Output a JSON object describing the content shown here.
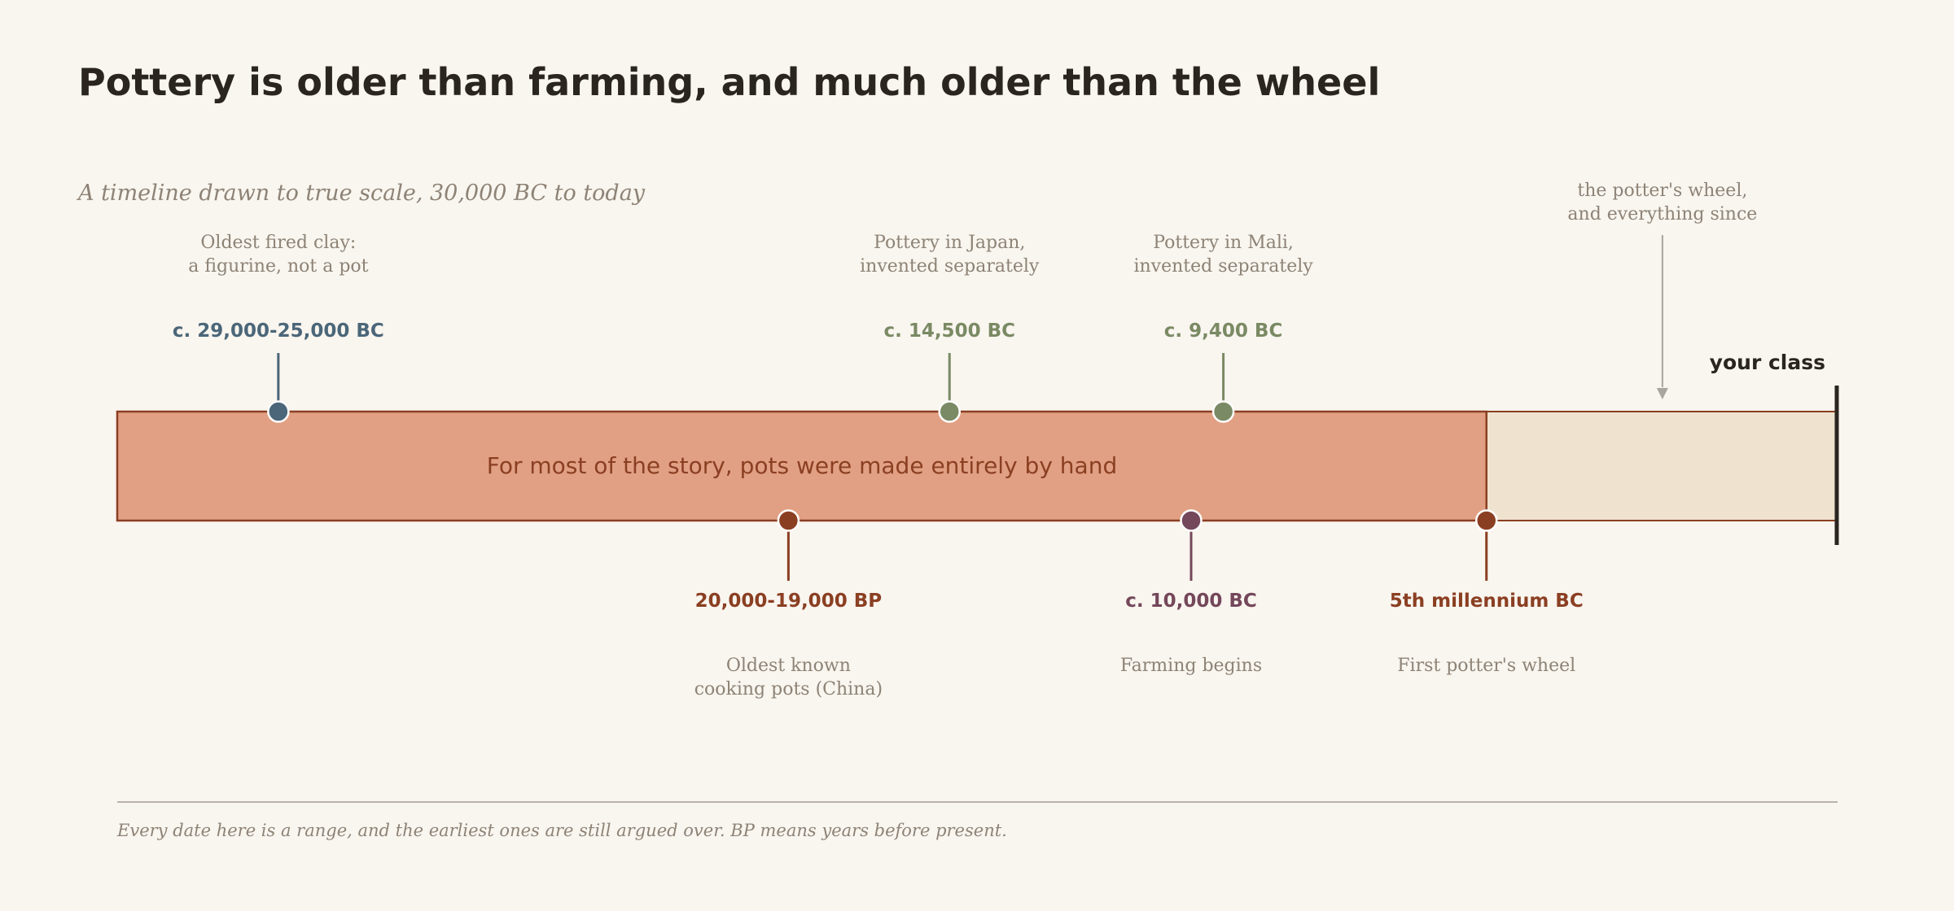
{
  "header": {
    "title": "Pottery is older than farming, and much older than the wheel",
    "subtitle": "A timeline drawn to true scale, 30,000 BC to today"
  },
  "timeline": {
    "range_start_year": -30000,
    "range_end_year": 2024,
    "hand_band_end_year": -4500,
    "band_label": "For most of the story, pots were made entirely by hand",
    "end_label": "your class",
    "wheel_callout": [
      "the potter's wheel,",
      "and everything since"
    ],
    "colors": {
      "band_fill": "#e1a083",
      "band_stroke": "#8b3f22",
      "wheel_fill": "#efe3d0",
      "end_bar": "#2b2520",
      "callout_arrow": "#a9a49c"
    },
    "events": [
      {
        "id": "figurine",
        "year": -27000,
        "side": "above",
        "date": "c. 29,000-25,000 BC",
        "desc": [
          "Oldest fired clay:",
          "a figurine, not a pot"
        ],
        "color": "#4b6678"
      },
      {
        "id": "china",
        "year": -17500,
        "side": "below",
        "date": "20,000-19,000 BP",
        "desc": [
          "Oldest known",
          "cooking pots (China)"
        ],
        "color": "#8b3f22"
      },
      {
        "id": "japan",
        "year": -14500,
        "side": "above",
        "date": "c. 14,500 BC",
        "desc": [
          "Pottery in Japan,",
          "invented separately"
        ],
        "color": "#7a8a64"
      },
      {
        "id": "farming",
        "year": -10000,
        "side": "below",
        "date": "c. 10,000 BC",
        "desc": [
          "Farming begins"
        ],
        "color": "#74475a"
      },
      {
        "id": "mali",
        "year": -9400,
        "side": "above",
        "date": "c. 9,400 BC",
        "desc": [
          "Pottery in Mali,",
          "invented separately"
        ],
        "color": "#7a8a64"
      },
      {
        "id": "wheel",
        "year": -4500,
        "side": "below",
        "date": "5th millennium BC",
        "desc": [
          "First potter's wheel"
        ],
        "color": "#8b3f22"
      }
    ]
  },
  "footer": {
    "note": "Every date here is a range, and the earliest ones are still argued over. BP means years before present."
  }
}
